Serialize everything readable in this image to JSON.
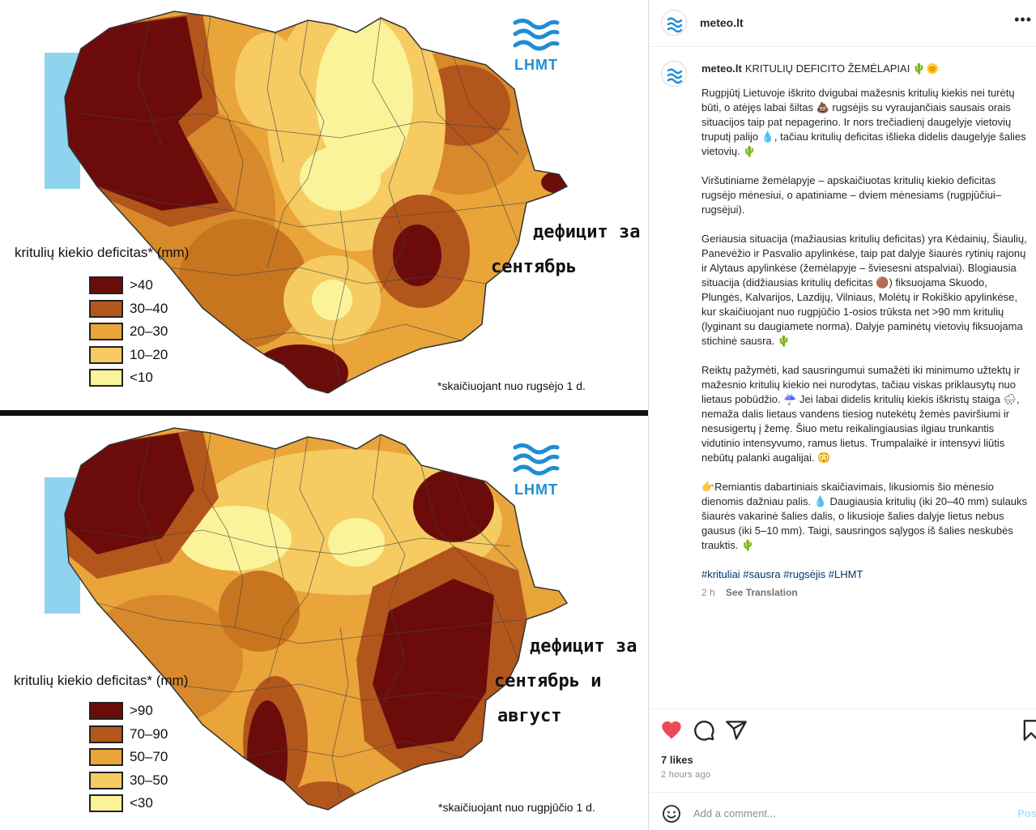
{
  "media": {
    "top_map": {
      "logo_text": "LHMT",
      "legend_title": "kritulių kiekio deficitas* (mm)",
      "legend": [
        {
          "label": ">40",
          "color": "#6b0c0b"
        },
        {
          "label": "30–40",
          "color": "#b3561c"
        },
        {
          "label": "20–30",
          "color": "#e9a43a"
        },
        {
          "label": "10–20",
          "color": "#f5cb62"
        },
        {
          "label": "<10",
          "color": "#fbf39a"
        }
      ],
      "footnote": "*skaičiuojant nuo rugsėjo 1 d.",
      "annotation_lines": [
        "дефицит за",
        "сентябрь"
      ]
    },
    "bottom_map": {
      "logo_text": "LHMT",
      "legend_title": "kritulių kiekio deficitas* (mm)",
      "legend": [
        {
          "label": ">90",
          "color": "#6b0c0b"
        },
        {
          "label": "70–90",
          "color": "#b3561c"
        },
        {
          "label": "50–70",
          "color": "#e9a43a"
        },
        {
          "label": "30–50",
          "color": "#f5cb62"
        },
        {
          "label": "<30",
          "color": "#fbf39a"
        }
      ],
      "footnote": "*skaičiuojant nuo rugpjūčio 1 d.",
      "annotation_lines": [
        "дефицит за",
        "сентябрь и",
        "август"
      ]
    },
    "colors": {
      "sea": "#8fd3ef",
      "accent_logo": "#1f8dd6"
    }
  },
  "post": {
    "header_username": "meteo.lt",
    "caption_username": "meteo.lt",
    "caption_title": "KRITULIŲ DEFICITO ŽEMĖLAPIAI 🌵🌞",
    "paragraphs": [
      "Rugpjūtį Lietuvoje iškrito dvigubai mažesnis kritulių kiekis nei turėtų būti, o atėjęs labai šiltas 💩 rugsėjis su vyraujančiais sausais orais situacijos taip pat nepagerino. Ir nors trečiadienį daugelyje vietovių truputį palijo 💧, tačiau kritulių deficitas išlieka didelis daugelyje šalies vietovių. 🌵",
      "Viršutiniame žemėlapyje – apskaičiuotas kritulių kiekio deficitas rugsėjo mėnesiui, o apatiniame – dviem mėnesiams (rugpjūčiui–rugsėjui).",
      "Geriausia situacija (mažiausias kritulių deficitas) yra Kėdainių, Šiaulių, Panevėžio ir Pasvalio apylinkėse, taip pat dalyje šiaurės rytinių rajonų ir Alytaus apylinkėse (žemėlapyje – šviesesni atspalviai). Blogiausia situacija (didžiausias kritulių deficitas 🟤) fiksuojama Skuodo, Plungės, Kalvarijos, Lazdijų, Vilniaus, Molėtų ir Rokiškio apylinkėse, kur skaičiuojant nuo rugpjūčio 1-osios trūksta net >90 mm kritulių (lyginant su daugiamete norma). Dalyje paminėtų vietovių fiksuojama stichinė sausra. 🌵",
      "Reiktų pažymėti, kad sausringumui sumažėti iki minimumo užtektų ir mažesnio kritulių kiekio nei nurodytas, tačiau viskas priklausytų nuo lietaus pobūdžio. ☔ Jei labai didelis kritulių kiekis iškristų staiga 🌧, nemaža dalis lietaus vandens tiesiog nutekėtų žemės paviršiumi ir nesusigertų į žemę. Šiuo metu reikalingiausias ilgiau trunkantis vidutinio intensyvumo, ramus lietus. Trumpalaikė ir intensyvi liūtis nebūtų palanki augalijai. 😳",
      "👉Remiantis dabartiniais skaičiavimais, likusiomis šio mėnesio dienomis dažniau palis. 💧 Daugiausia kritulių (iki 20–40 mm) sulauks šiaurės vakarinė šalies dalis, o likusioje šalies dalyje lietus nebus gausus (iki 5–10 mm). Taigi, sausringos sąlygos iš šalies neskubės trauktis. 🌵"
    ],
    "hashtags": "#krituliai #sausra #rugsėjis #LHMT",
    "caption_age": "2 h",
    "see_translation": "See Translation",
    "likes": "7 likes",
    "time_ago": "2 hours ago",
    "comment_placeholder": "Add a comment...",
    "post_button": "Post",
    "colors": {
      "like_red": "#ed4956",
      "link": "#00376b",
      "muted": "#8e8e8e"
    }
  }
}
